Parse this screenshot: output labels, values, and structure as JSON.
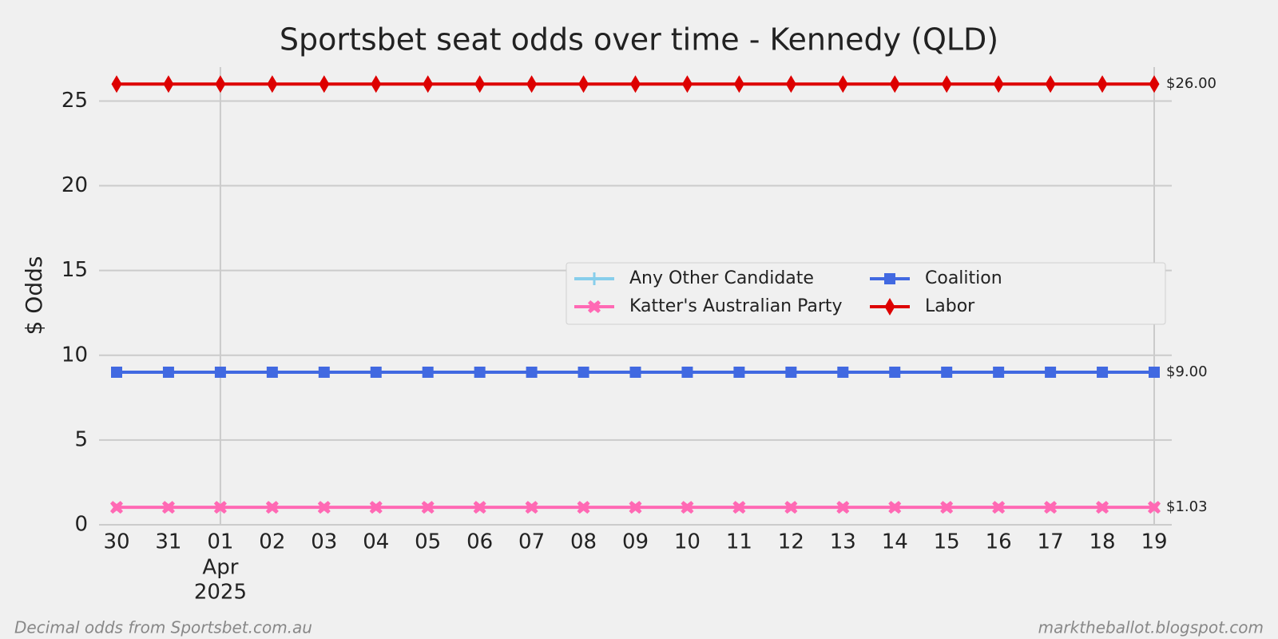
{
  "chart_data": {
    "type": "line",
    "title": "Sportsbet seat odds over time - Kennedy (QLD)",
    "ylabel": "$ Odds",
    "categories": [
      "30",
      "31",
      "01",
      "02",
      "03",
      "04",
      "05",
      "06",
      "07",
      "08",
      "09",
      "10",
      "11",
      "12",
      "13",
      "14",
      "15",
      "16",
      "17",
      "18",
      "19"
    ],
    "x_period_label": {
      "category": 2,
      "month": "Apr",
      "year": "2025"
    },
    "x_major_ticks": [
      2,
      20
    ],
    "ylim": [
      0,
      27
    ],
    "yticks": [
      0,
      5,
      10,
      15,
      20,
      25
    ],
    "grid": true,
    "legend": "center right",
    "legend_columns": 2,
    "series": [
      {
        "name": "Any Other Candidate",
        "color": "#87ceeb",
        "marker": "plus",
        "values": [
          null,
          null,
          null,
          null,
          null,
          null,
          null,
          null,
          null,
          null,
          null,
          null,
          null,
          null,
          null,
          null,
          null,
          null,
          null,
          null,
          null
        ]
      },
      {
        "name": "Coalition",
        "color": "#4169e1",
        "marker": "square",
        "values": [
          9,
          9,
          9,
          9,
          9,
          9,
          9,
          9,
          9,
          9,
          9,
          9,
          9,
          9,
          9,
          9,
          9,
          9,
          9,
          9,
          9
        ],
        "last_label": "$9.00"
      },
      {
        "name": "Katter's Australian Party",
        "color": "#ff69b4",
        "marker": "x",
        "values": [
          1.03,
          1.03,
          1.03,
          1.03,
          1.03,
          1.03,
          1.03,
          1.03,
          1.03,
          1.03,
          1.03,
          1.03,
          1.03,
          1.03,
          1.03,
          1.03,
          1.03,
          1.03,
          1.03,
          1.03,
          1.03
        ],
        "last_label": "$1.03"
      },
      {
        "name": "Labor",
        "color": "#dd0000",
        "marker": "diamond",
        "values": [
          26,
          26,
          26,
          26,
          26,
          26,
          26,
          26,
          26,
          26,
          26,
          26,
          26,
          26,
          26,
          26,
          26,
          26,
          26,
          26,
          26
        ],
        "last_label": "$26.00"
      }
    ],
    "footer_left": "Decimal odds from Sportsbet.com.au",
    "footer_right": "marktheballot.blogspot.com"
  }
}
